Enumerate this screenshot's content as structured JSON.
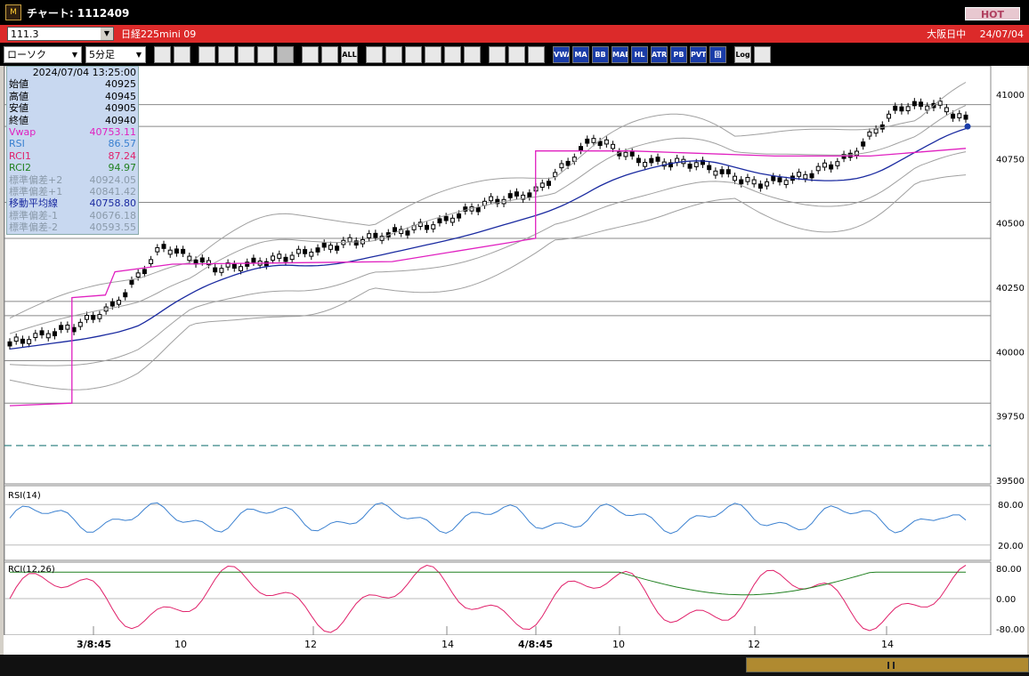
{
  "window": {
    "title": "チャート: 1112409",
    "hot_label": "HOT"
  },
  "header": {
    "code": "111.3",
    "symbol": "日経225mini 09",
    "market_status": "大阪日中",
    "date": "24/07/04"
  },
  "toolbar": {
    "chart_type": "ローソク",
    "period": "5分足",
    "buttons": [
      {
        "name": "zoom-icon",
        "label": ""
      },
      {
        "name": "bar-width-icon",
        "label": ""
      },
      {
        "name": "candle-icon",
        "label": ""
      },
      {
        "name": "search-chart-icon",
        "label": ""
      },
      {
        "name": "line-chart-icon",
        "label": ""
      },
      {
        "name": "arrow-swap-icon",
        "label": ""
      },
      {
        "name": "grey-tool-icon",
        "label": ""
      },
      {
        "name": "box-icon",
        "label": ""
      },
      {
        "name": "box2-icon",
        "label": ""
      },
      {
        "name": "all-button",
        "label": "ALL"
      },
      {
        "name": "pen-icon",
        "label": ""
      },
      {
        "name": "draw-line-icon",
        "label": ""
      },
      {
        "name": "cursor-icon",
        "label": ""
      },
      {
        "name": "undo-icon",
        "label": ""
      },
      {
        "name": "document-icon",
        "label": ""
      },
      {
        "name": "trash-icon",
        "label": ""
      },
      {
        "name": "settings-icon",
        "label": ""
      },
      {
        "name": "brush-icon",
        "label": ""
      },
      {
        "name": "color-icon",
        "label": ""
      },
      {
        "name": "vwap-button",
        "label": "VWAP"
      },
      {
        "name": "ma-button",
        "label": "MA"
      },
      {
        "name": "bb-button",
        "label": "BB"
      },
      {
        "name": "mae-button",
        "label": "MAE"
      },
      {
        "name": "hl-button",
        "label": "HL"
      },
      {
        "name": "atr-button",
        "label": "ATR"
      },
      {
        "name": "pb-button",
        "label": "PB"
      },
      {
        "name": "pvt-button",
        "label": "PVT"
      },
      {
        "name": "box-select-button",
        "label": "回"
      },
      {
        "name": "log-button",
        "label": "Log"
      },
      {
        "name": "export-icon",
        "label": ""
      }
    ]
  },
  "info_panel": {
    "datetime": "2024/07/04  13:25:00",
    "rows": [
      {
        "label": "始値",
        "value": "40925",
        "color": "#000000"
      },
      {
        "label": "高値",
        "value": "40945",
        "color": "#000000"
      },
      {
        "label": "安値",
        "value": "40905",
        "color": "#000000"
      },
      {
        "label": "終値",
        "value": "40940",
        "color": "#000000"
      },
      {
        "label": "Vwap",
        "value": "40753.11",
        "color": "#e020c0"
      },
      {
        "label": "RSI",
        "value": "86.57",
        "color": "#3a80d0"
      },
      {
        "label": "RCI1",
        "value": "87.24",
        "color": "#e0206a"
      },
      {
        "label": "RCI2",
        "value": "94.97",
        "color": "#208020"
      },
      {
        "label": "標準偏差+2",
        "value": "40924.05",
        "color": "#8a9aaa"
      },
      {
        "label": "標準偏差+1",
        "value": "40841.42",
        "color": "#8a9aaa"
      },
      {
        "label": "移動平均線",
        "value": "40758.80",
        "color": "#1a2aa0"
      },
      {
        "label": "標準偏差-1",
        "value": "40676.18",
        "color": "#8a9aaa"
      },
      {
        "label": "標準偏差-2",
        "value": "40593.55",
        "color": "#8a9aaa"
      }
    ]
  },
  "price_axis": {
    "ticks": [
      "41000",
      "40750",
      "40500",
      "40250",
      "40000",
      "39750",
      "39500"
    ]
  },
  "rsi_panel": {
    "label": "RSI(14)",
    "ticks": [
      "80.00",
      "20.00"
    ]
  },
  "rci_panel": {
    "label": "RCI(12,26)",
    "ticks": [
      "80.00",
      "0.00",
      "-80.00"
    ]
  },
  "x_axis": {
    "labels": [
      "3/8:45",
      "10",
      "12",
      "14",
      "4/8:45",
      "10",
      "12",
      "14"
    ]
  },
  "colors": {
    "vwap": "#e020c0",
    "ma": "#1a2aa0",
    "bb": "#a0a0a0",
    "rsi": "#3a80d0",
    "rci_short": "#e0206a",
    "rci_long": "#208020",
    "dashed_level": "#207a7a"
  }
}
